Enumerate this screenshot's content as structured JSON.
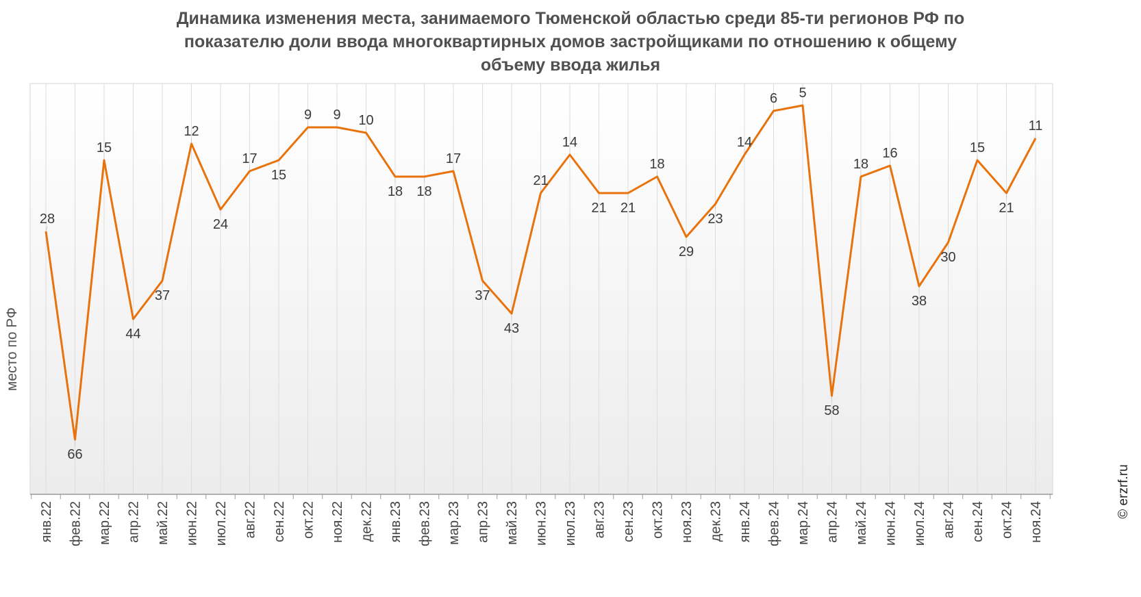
{
  "chart_data": {
    "type": "line",
    "title": "Динамика изменения места, занимаемого Тюменской областью среди 85-ти регионов РФ по показателю доли ввода многоквартирных домов застройщиками по отношению к общему объему ввода жилья",
    "title_lines": [
      "Динамика изменения места, занимаемого Тюменской областью среди 85-ти регионов РФ по",
      "показателю доли ввода многоквартирных домов застройщиками по отношению к общему",
      "объему ввода жилья"
    ],
    "xlabel": "",
    "ylabel": "место по РФ",
    "y_inverted": true,
    "ylim": [
      1,
      76
    ],
    "grid": "vertical",
    "categories": [
      "янв.22",
      "фев.22",
      "мар.22",
      "апр.22",
      "май.22",
      "июн.22",
      "июл.22",
      "авг.22",
      "сен.22",
      "окт.22",
      "ноя.22",
      "дек.22",
      "янв.23",
      "фев.23",
      "мар.23",
      "апр.23",
      "май.23",
      "июн.23",
      "июл.23",
      "авг.23",
      "сен.23",
      "окт.23",
      "ноя.23",
      "дек.23",
      "янв.24",
      "фев.24",
      "мар.24",
      "апр.24",
      "май.24",
      "июн.24",
      "июл.24",
      "авг.24",
      "сен.24",
      "окт.24",
      "ноя.24"
    ],
    "values": [
      28,
      66,
      15,
      44,
      37,
      12,
      24,
      17,
      15,
      9,
      9,
      10,
      18,
      18,
      17,
      37,
      43,
      21,
      14,
      21,
      21,
      18,
      29,
      23,
      14,
      6,
      5,
      58,
      18,
      16,
      38,
      30,
      15,
      21,
      11
    ],
    "line_color": "#e8720c"
  },
  "watermark": "© erzrf.ru"
}
